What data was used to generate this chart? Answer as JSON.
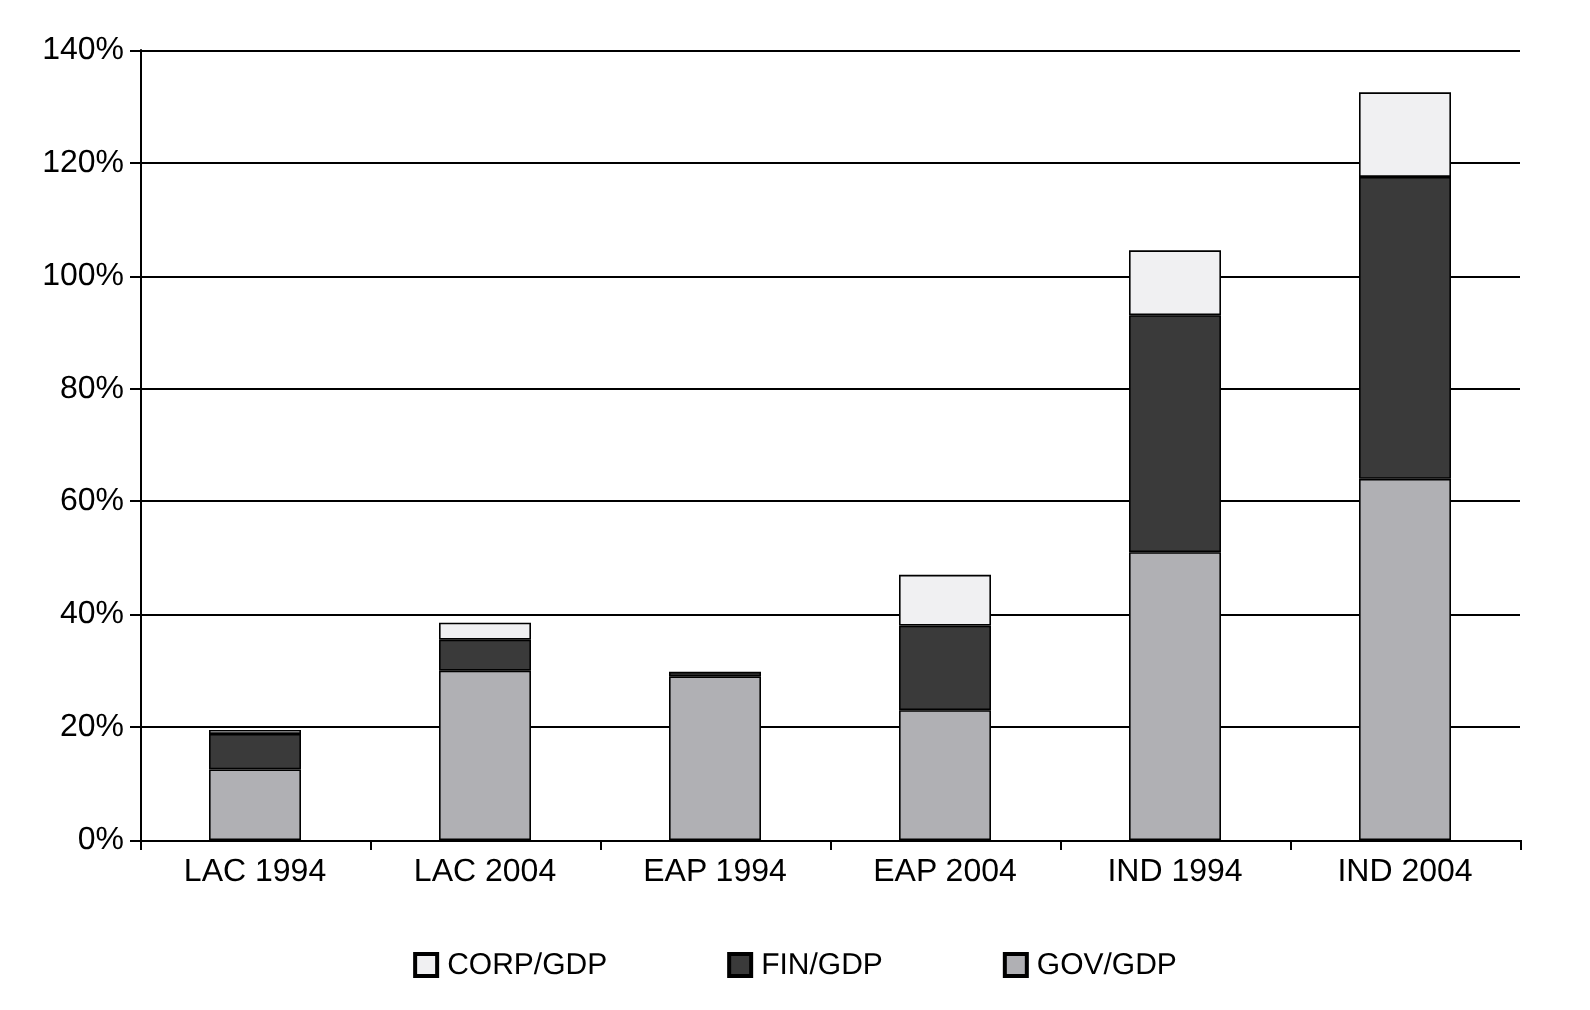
{
  "chart_data": {
    "type": "bar",
    "stacked": true,
    "categories": [
      "LAC 1994",
      "LAC 2004",
      "EAP 1994",
      "EAP 2004",
      "IND 1994",
      "IND 2004"
    ],
    "series": [
      {
        "name": "GOV/GDP",
        "color": "#b0b0b4",
        "values": [
          12.5,
          30,
          29,
          23,
          51,
          64
        ]
      },
      {
        "name": "FIN/GDP",
        "color": "#3a3a3a",
        "values": [
          6.3,
          5.5,
          0.8,
          15,
          42,
          53.5
        ]
      },
      {
        "name": "CORP/GDP",
        "color": "#f0f0f2",
        "values": [
          0.7,
          3,
          0,
          9,
          11.5,
          15
        ]
      }
    ],
    "ylim": [
      0,
      140
    ],
    "yticks": [
      {
        "value": 0,
        "label": "0%"
      },
      {
        "value": 20,
        "label": "20%"
      },
      {
        "value": 40,
        "label": "40%"
      },
      {
        "value": 60,
        "label": "60%"
      },
      {
        "value": 80,
        "label": "80%"
      },
      {
        "value": 100,
        "label": "100%"
      },
      {
        "value": 120,
        "label": "120%"
      },
      {
        "value": 140,
        "label": "140%"
      }
    ],
    "grid": "y",
    "legend": "bottom"
  }
}
